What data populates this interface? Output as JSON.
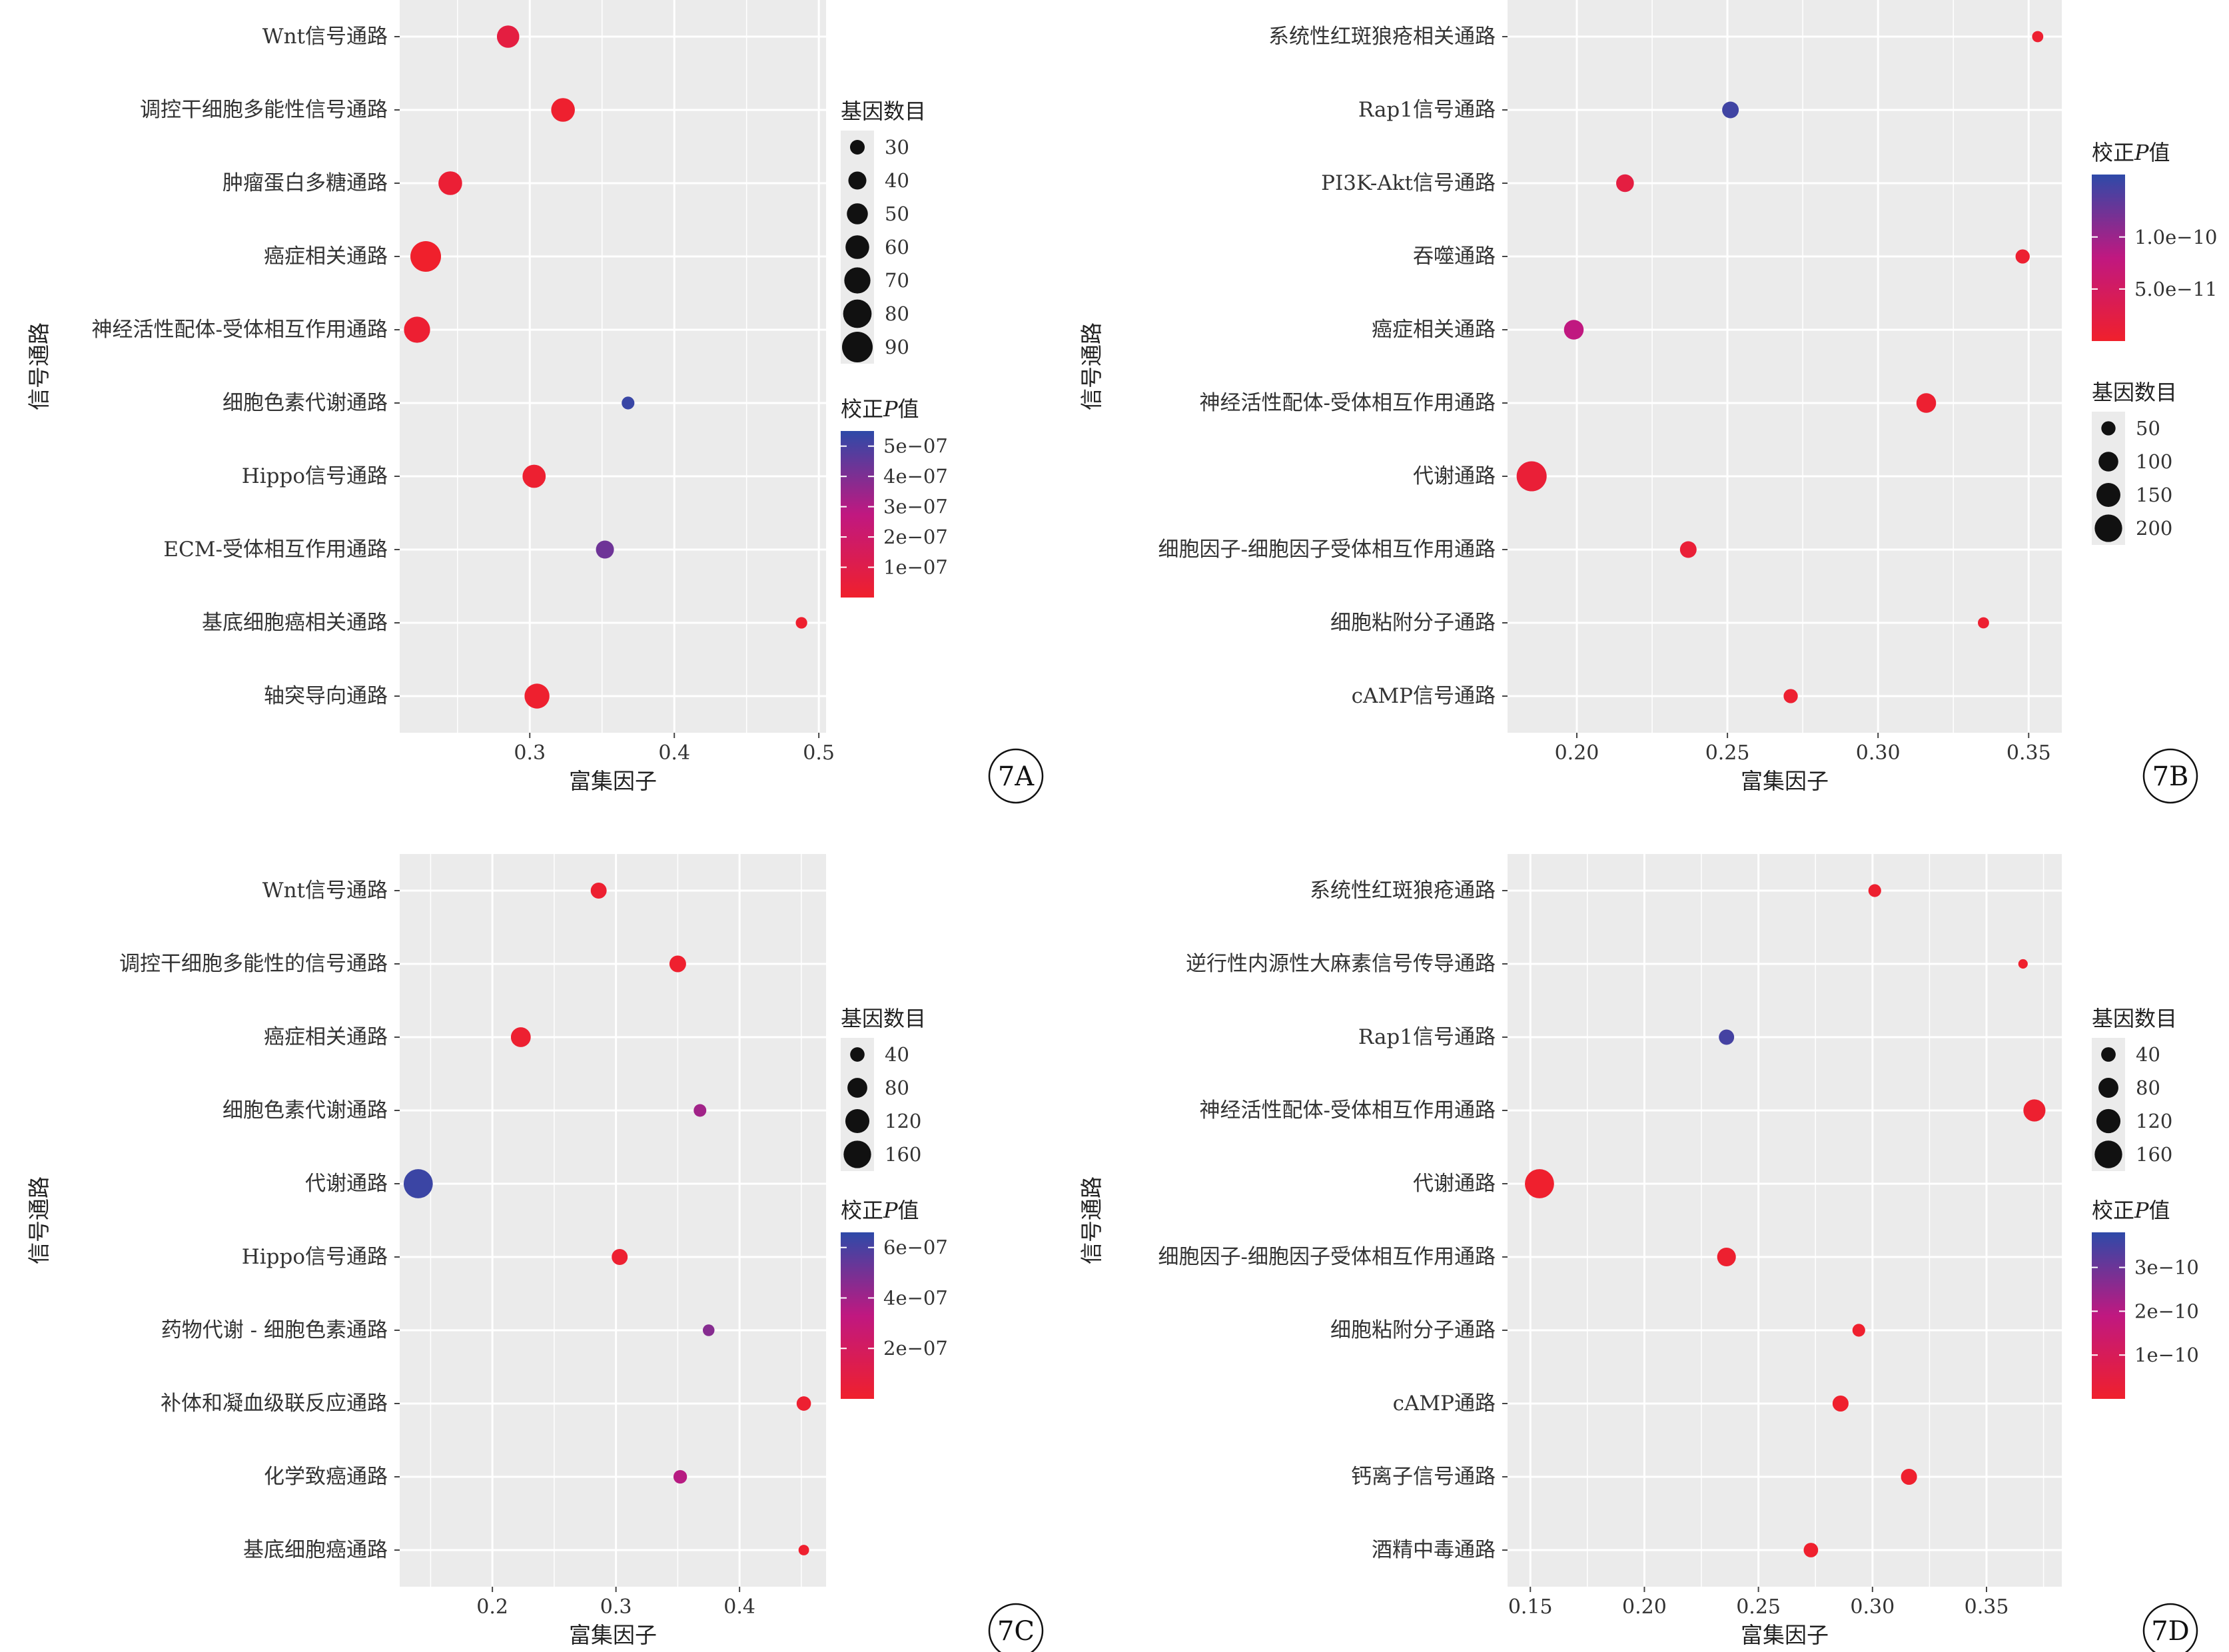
{
  "figure": {
    "colors": {
      "low": "#f0202c",
      "mid": "#c01880",
      "high": "#2e4aa8",
      "panel_bg": "#ebebeb",
      "grid": "#ffffff"
    }
  },
  "chart_data": [
    {
      "id": "7A",
      "type": "scatter",
      "xlabel": "富集因子",
      "ylabel": "信号通路",
      "xlim": [
        0.21,
        0.505
      ],
      "xticks": [
        0.3,
        0.4,
        0.5
      ],
      "xtick_labels": [
        "0.3",
        "0.4",
        "0.5"
      ],
      "categories": [
        "Wnt信号通路",
        "调控干细胞多能性信号通路",
        "肿瘤蛋白多糖通路",
        "癌症相关通路",
        "神经活性配体-受体相互作用通路",
        "细胞色素代谢通路",
        "Hippo信号通路",
        "ECM-受体相互作用通路",
        "基底细胞癌相关通路",
        "轴突导向通路"
      ],
      "x": [
        0.285,
        0.323,
        0.245,
        0.228,
        0.222,
        0.368,
        0.303,
        0.352,
        0.488,
        0.305
      ],
      "gene_count": [
        55,
        60,
        60,
        90,
        70,
        25,
        58,
        40,
        22,
        65
      ],
      "padj": [
        7e-08,
        1e-08,
        3e-08,
        1e-09,
        2e-08,
        5.3e-07,
        1.5e-08,
        4.3e-07,
        1e-08,
        1e-08
      ],
      "size_legend": {
        "title": "基因数目",
        "values": [
          30,
          40,
          50,
          60,
          70,
          80,
          90
        ],
        "labels": [
          "30",
          "40",
          "50",
          "60",
          "70",
          "80",
          "90"
        ]
      },
      "color_legend": {
        "title_prefix": "校正",
        "title_italic": "P",
        "title_suffix": "值",
        "range": [
          0,
          5.5e-07
        ],
        "ticks": [
          5e-07,
          4e-07,
          3e-07,
          2e-07,
          1e-07
        ],
        "tick_labels": [
          "5e−07",
          "4e−07",
          "3e−07",
          "2e−07",
          "1e−07"
        ]
      },
      "size_range": [
        20,
        90
      ],
      "radius_range": [
        8,
        23
      ]
    },
    {
      "id": "7B",
      "type": "scatter",
      "xlabel": "富集因子",
      "ylabel": "信号通路",
      "xlim": [
        0.177,
        0.361
      ],
      "xticks": [
        0.2,
        0.25,
        0.3,
        0.35
      ],
      "xtick_labels": [
        "0.20",
        "0.25",
        "0.30",
        "0.35"
      ],
      "categories": [
        "系统性红斑狼疮相关通路",
        "Rap1信号通路",
        "PI3K-Akt信号通路",
        "吞噬通路",
        "癌症相关通路",
        "神经活性配体-受体相互作用通路",
        "代谢通路",
        "细胞因子-细胞因子受体相互作用通路",
        "细胞粘附分子通路",
        "cAMP信号通路"
      ],
      "x": [
        0.353,
        0.251,
        0.216,
        0.348,
        0.199,
        0.316,
        0.185,
        0.237,
        0.335,
        0.271
      ],
      "gene_count": [
        30,
        70,
        80,
        50,
        100,
        100,
        240,
        70,
        30,
        50
      ],
      "padj": [
        5e-12,
        1.5e-10,
        2e-11,
        5e-12,
        8e-11,
        5e-12,
        1e-11,
        1e-11,
        5e-12,
        5e-12
      ],
      "size_legend": {
        "title": "基因数目",
        "values": [
          50,
          100,
          150,
          200
        ],
        "labels": [
          "50",
          "100",
          "150",
          "200"
        ]
      },
      "color_legend": {
        "title_prefix": "校正",
        "title_italic": "P",
        "title_suffix": "值",
        "range": [
          0,
          1.6e-10
        ],
        "ticks": [
          1e-10,
          5e-11
        ],
        "tick_labels": [
          "1.0e−10",
          "5.0e−11"
        ]
      },
      "size_range": [
        20,
        250
      ],
      "radius_range": [
        7,
        23
      ]
    },
    {
      "id": "7C",
      "type": "scatter",
      "xlabel": "富集因子",
      "ylabel": "信号通路",
      "xlim": [
        0.125,
        0.47
      ],
      "xticks": [
        0.2,
        0.3,
        0.4
      ],
      "xtick_labels": [
        "0.2",
        "0.3",
        "0.4"
      ],
      "categories": [
        "Wnt信号通路",
        "调控干细胞多能性的信号通路",
        "癌症相关通路",
        "细胞色素代谢通路",
        "代谢通路",
        "Hippo信号通路",
        "药物代谢 - 细胞色素通路",
        "补体和凝血级联反应通路",
        "化学致癌通路",
        "基底细胞癌通路"
      ],
      "x": [
        0.286,
        0.35,
        0.223,
        0.368,
        0.14,
        0.303,
        0.375,
        0.452,
        0.352,
        0.452
      ],
      "gene_count": [
        50,
        55,
        80,
        30,
        180,
        50,
        25,
        40,
        35,
        20
      ],
      "padj": [
        2e-08,
        1e-08,
        2e-08,
        4e-07,
        6.3e-07,
        2e-08,
        4.6e-07,
        2e-08,
        3.5e-07,
        1e-08
      ],
      "size_legend": {
        "title": "基因数目",
        "values": [
          40,
          80,
          120,
          160
        ],
        "labels": [
          "40",
          "80",
          "120",
          "160"
        ]
      },
      "color_legend": {
        "title_prefix": "校正",
        "title_italic": "P",
        "title_suffix": "值",
        "range": [
          0,
          6.6e-07
        ],
        "ticks": [
          6e-07,
          4e-07,
          2e-07
        ],
        "tick_labels": [
          "6e−07",
          "4e−07",
          "2e−07"
        ]
      },
      "size_range": [
        15,
        200
      ],
      "radius_range": [
        7,
        23
      ]
    },
    {
      "id": "7D",
      "type": "scatter",
      "xlabel": "富集因子",
      "ylabel": "信号通路",
      "xlim": [
        0.14,
        0.383
      ],
      "xticks": [
        0.15,
        0.2,
        0.25,
        0.3,
        0.35
      ],
      "xtick_labels": [
        "0.15",
        "0.20",
        "0.25",
        "0.30",
        "0.35"
      ],
      "categories": [
        "系统性红斑狼疮通路",
        "逆行性内源性大麻素信号传导通路",
        "Rap1信号通路",
        "神经活性配体-受体相互作用通路",
        "代谢通路",
        "细胞因子-细胞因子受体相互作用通路",
        "细胞粘附分子通路",
        "cAMP通路",
        "钙离子信号通路",
        "酒精中毒通路"
      ],
      "x": [
        0.301,
        0.366,
        0.236,
        0.371,
        0.154,
        0.236,
        0.294,
        0.286,
        0.316,
        0.273
      ],
      "gene_count": [
        30,
        15,
        45,
        100,
        180,
        70,
        30,
        50,
        50,
        40
      ],
      "padj": [
        1e-11,
        5e-12,
        3.5e-10,
        1e-11,
        5e-12,
        1e-11,
        5e-12,
        5e-12,
        5e-12,
        5e-12
      ],
      "size_legend": {
        "title": "基因数目",
        "values": [
          40,
          80,
          120,
          160
        ],
        "labels": [
          "40",
          "80",
          "120",
          "160"
        ]
      },
      "color_legend": {
        "title_prefix": "校正",
        "title_italic": "P",
        "title_suffix": "值",
        "range": [
          0,
          3.8e-10
        ],
        "ticks": [
          3e-10,
          2e-10,
          1e-10
        ],
        "tick_labels": [
          "3e−10",
          "2e−10",
          "1e−10"
        ]
      },
      "size_range": [
        10,
        200
      ],
      "radius_range": [
        6,
        23
      ]
    }
  ]
}
